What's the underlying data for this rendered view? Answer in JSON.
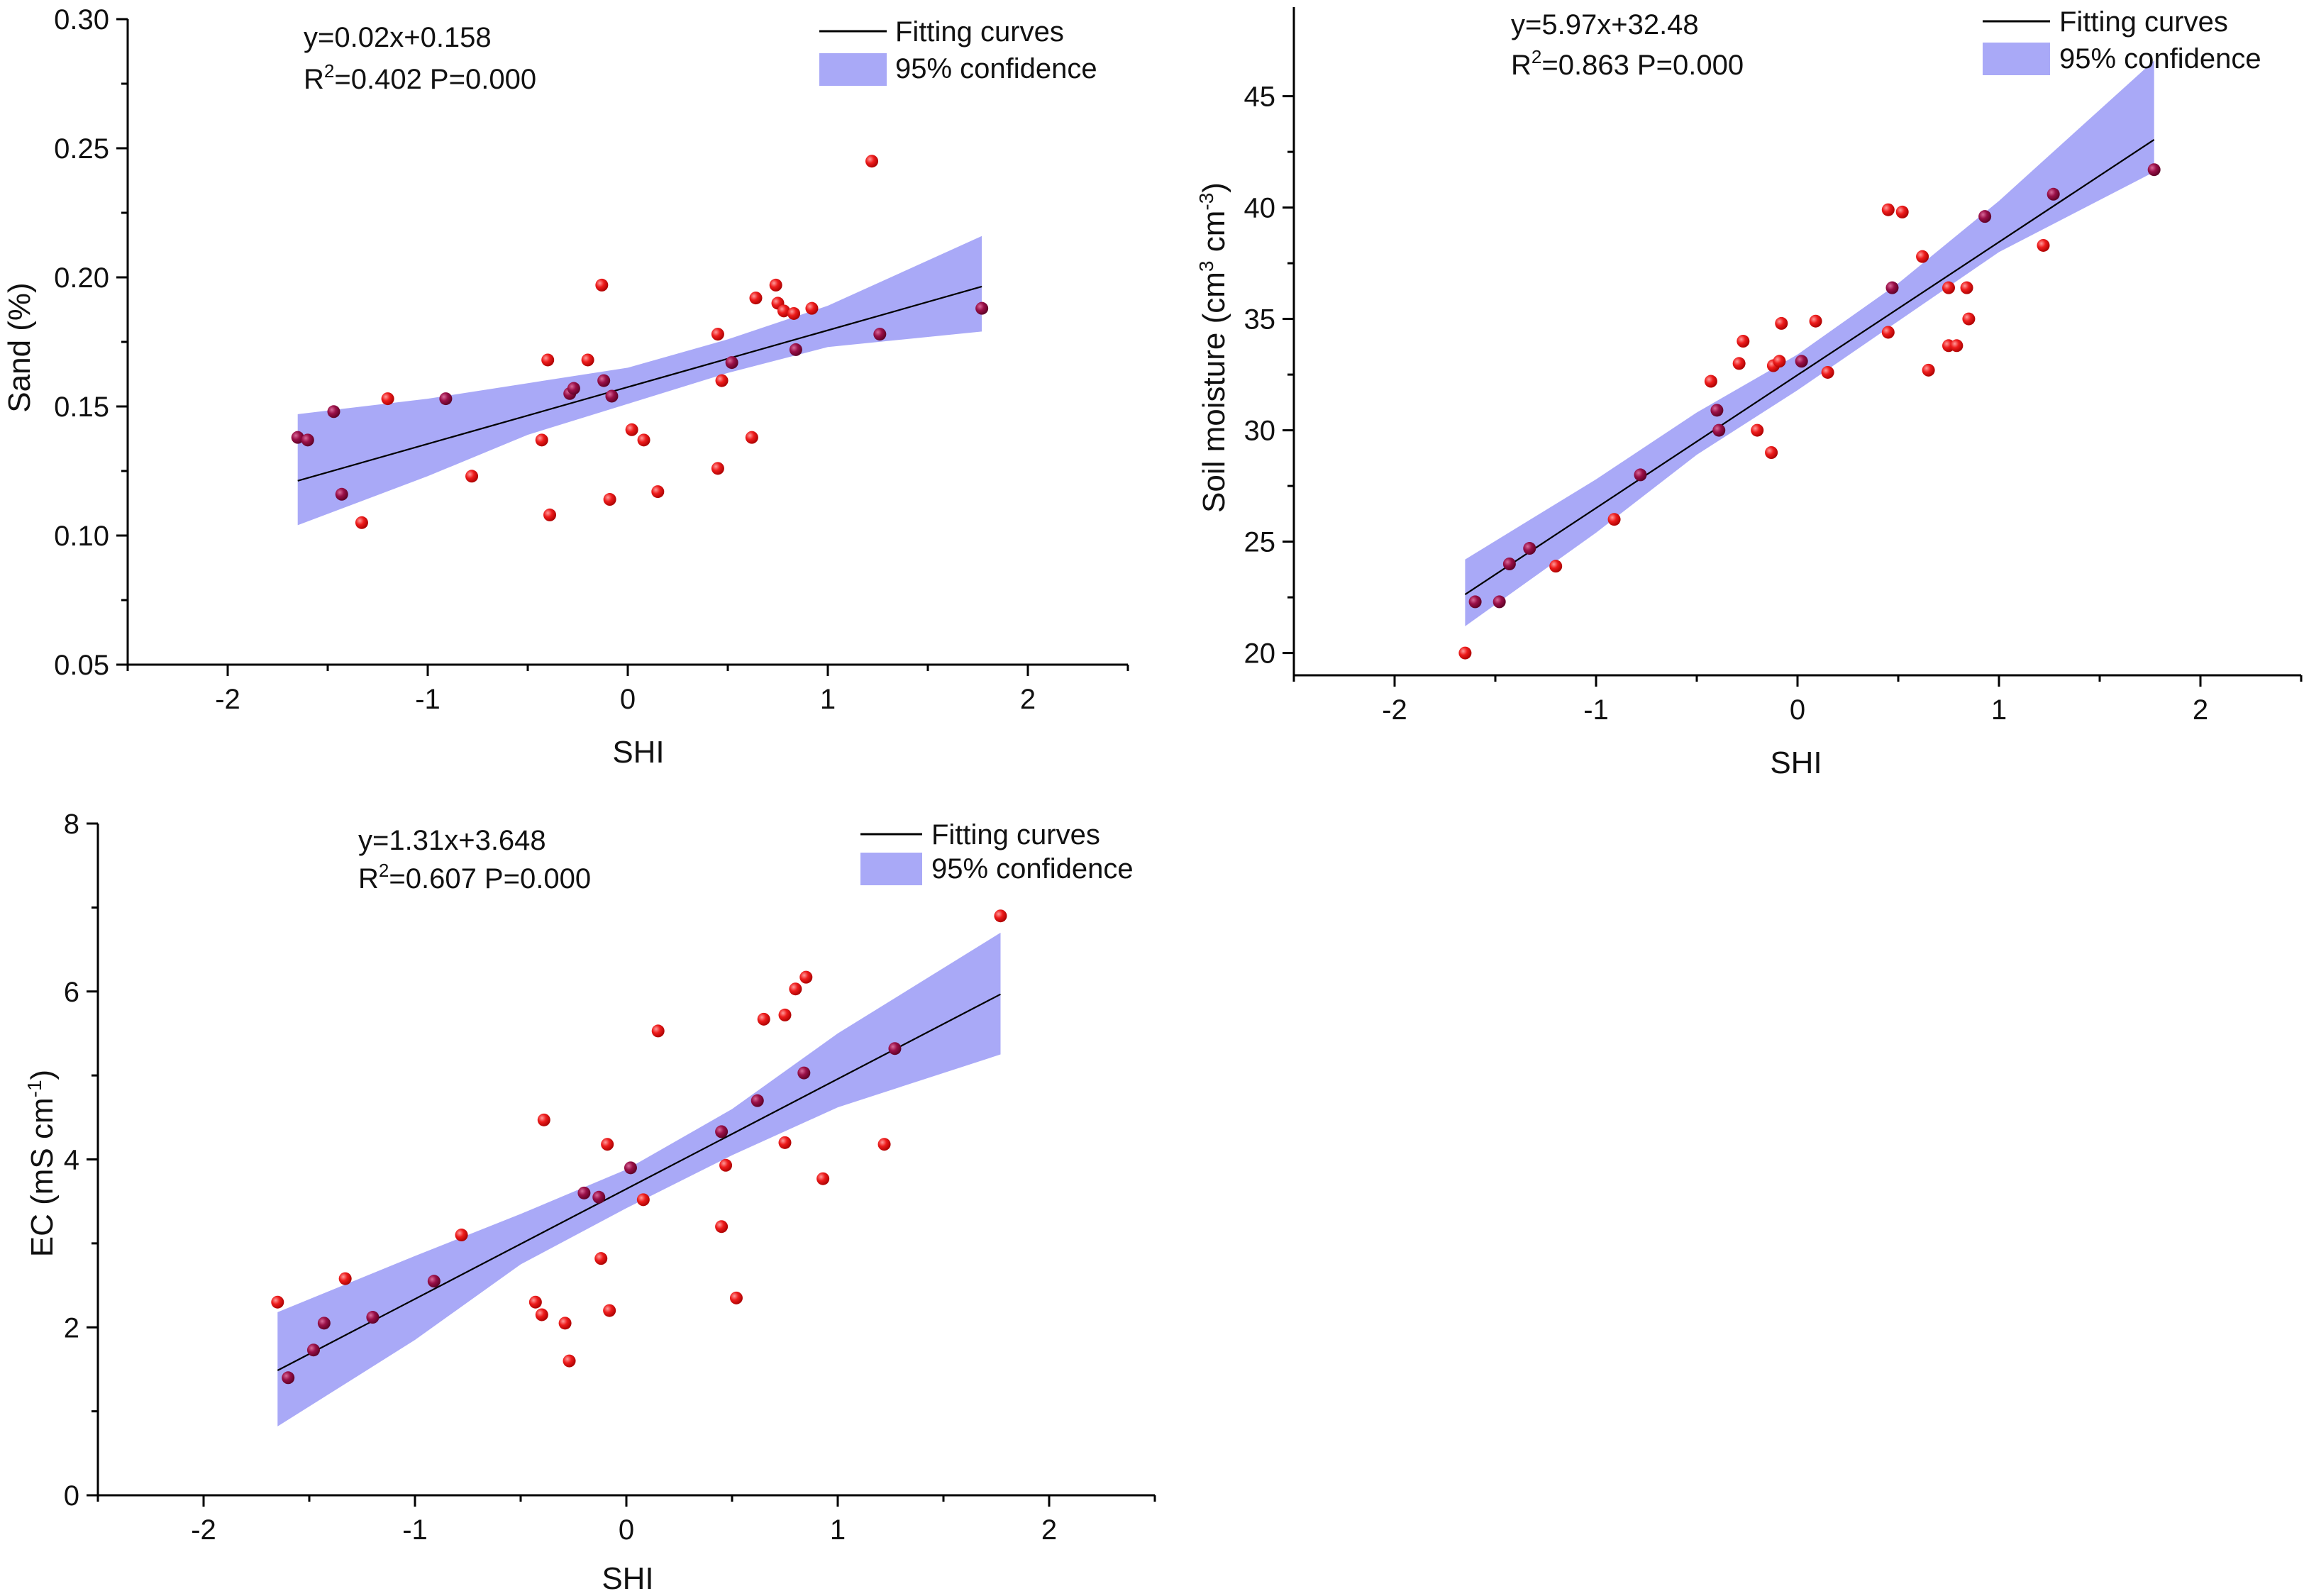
{
  "chart_data": [
    {
      "type": "scatter",
      "id": "sand",
      "xlabel": "SHI",
      "ylabel": "Sand (%)",
      "xlim": [
        -2.5,
        2.5
      ],
      "ylim": [
        0.05,
        0.3
      ],
      "xticks": [
        -2,
        -1,
        0,
        1,
        2
      ],
      "yticks": [
        0.05,
        0.1,
        0.15,
        0.2,
        0.25,
        0.3
      ],
      "xtick_labels": [
        "-2",
        "-1",
        "0",
        "1",
        "2"
      ],
      "ytick_labels": [
        "0.05",
        "0.10",
        "0.15",
        "0.20",
        "0.25",
        "0.30"
      ],
      "equation": "y=0.02x+0.158",
      "r2_label": "R",
      "r2_sup": "2",
      "r2_value": "=0.402 P=0.000",
      "legend": {
        "line": "Fitting curves",
        "band": "95% confidence"
      },
      "fit": {
        "slope": 0.022,
        "intercept": 0.1575,
        "x_range": [
          -1.65,
          1.77
        ]
      },
      "band_lower": [
        [
          -1.65,
          0.104
        ],
        [
          -1.0,
          0.123
        ],
        [
          -0.5,
          0.139
        ],
        [
          0.0,
          0.151
        ],
        [
          0.5,
          0.163
        ],
        [
          1.0,
          0.173
        ],
        [
          1.77,
          0.179
        ]
      ],
      "band_upper": [
        [
          -1.65,
          0.147
        ],
        [
          -1.0,
          0.153
        ],
        [
          -0.5,
          0.159
        ],
        [
          0.0,
          0.165
        ],
        [
          0.5,
          0.176
        ],
        [
          1.0,
          0.189
        ],
        [
          1.77,
          0.216
        ]
      ],
      "points": [
        [
          -1.65,
          0.138
        ],
        [
          -1.6,
          0.137
        ],
        [
          -1.47,
          0.148
        ],
        [
          -1.43,
          0.116
        ],
        [
          -1.33,
          0.105
        ],
        [
          -1.2,
          0.153
        ],
        [
          -0.91,
          0.153
        ],
        [
          -0.78,
          0.123
        ],
        [
          -0.43,
          0.137
        ],
        [
          -0.4,
          0.168
        ],
        [
          -0.39,
          0.108
        ],
        [
          -0.29,
          0.155
        ],
        [
          -0.27,
          0.157
        ],
        [
          -0.2,
          0.168
        ],
        [
          -0.13,
          0.197
        ],
        [
          -0.12,
          0.16
        ],
        [
          -0.09,
          0.114
        ],
        [
          -0.08,
          0.154
        ],
        [
          0.02,
          0.141
        ],
        [
          0.08,
          0.137
        ],
        [
          0.15,
          0.117
        ],
        [
          0.45,
          0.126
        ],
        [
          0.45,
          0.178
        ],
        [
          0.47,
          0.16
        ],
        [
          0.52,
          0.167
        ],
        [
          0.62,
          0.138
        ],
        [
          0.64,
          0.192
        ],
        [
          0.74,
          0.197
        ],
        [
          0.75,
          0.19
        ],
        [
          0.78,
          0.187
        ],
        [
          0.83,
          0.186
        ],
        [
          0.84,
          0.172
        ],
        [
          0.92,
          0.188
        ],
        [
          1.22,
          0.245
        ],
        [
          1.26,
          0.178
        ],
        [
          1.77,
          0.188
        ]
      ]
    },
    {
      "type": "scatter",
      "id": "soil-moisture",
      "xlabel": "SHI",
      "ylabel_main": "Soil moisture (cm",
      "ylabel_sup1": "3",
      "ylabel_mid": " cm",
      "ylabel_sup2": "-3",
      "ylabel_end": ")",
      "xlim": [
        -2.5,
        2.5
      ],
      "ylim": [
        19,
        49
      ],
      "xticks": [
        -2,
        -1,
        0,
        1,
        2
      ],
      "yticks": [
        20,
        25,
        30,
        35,
        40,
        45
      ],
      "xtick_labels": [
        "-2",
        "-1",
        "0",
        "1",
        "2"
      ],
      "ytick_labels": [
        "20",
        "25",
        "30",
        "35",
        "40",
        "45"
      ],
      "equation": "y=5.97x+32.48",
      "r2_label": "R",
      "r2_sup": "2",
      "r2_value": "=0.863 P=0.000",
      "legend": {
        "line": "Fitting curves",
        "band": "95% confidence"
      },
      "fit": {
        "slope": 5.97,
        "intercept": 32.48,
        "x_range": [
          -1.65,
          1.77
        ]
      },
      "band_lower": [
        [
          -1.65,
          21.2
        ],
        [
          -1.0,
          25.4
        ],
        [
          -0.5,
          28.9
        ],
        [
          0.0,
          31.8
        ],
        [
          0.5,
          34.9
        ],
        [
          1.0,
          38.0
        ],
        [
          1.77,
          41.6
        ]
      ],
      "band_upper": [
        [
          -1.65,
          24.2
        ],
        [
          -1.0,
          27.8
        ],
        [
          -0.5,
          30.8
        ],
        [
          0.0,
          33.4
        ],
        [
          0.5,
          36.6
        ],
        [
          1.0,
          40.3
        ],
        [
          1.77,
          46.6
        ]
      ],
      "points": [
        [
          -1.65,
          20.0
        ],
        [
          -1.6,
          22.3
        ],
        [
          -1.48,
          22.3
        ],
        [
          -1.43,
          24.0
        ],
        [
          -1.33,
          24.7
        ],
        [
          -1.2,
          23.9
        ],
        [
          -0.91,
          26.0
        ],
        [
          -0.78,
          28.0
        ],
        [
          -0.43,
          32.2
        ],
        [
          -0.4,
          30.9
        ],
        [
          -0.39,
          30.0
        ],
        [
          -0.29,
          33.0
        ],
        [
          -0.27,
          34.0
        ],
        [
          -0.2,
          30.0
        ],
        [
          -0.13,
          29.0
        ],
        [
          -0.12,
          32.9
        ],
        [
          -0.09,
          33.1
        ],
        [
          -0.08,
          34.8
        ],
        [
          0.02,
          33.1
        ],
        [
          0.09,
          34.9
        ],
        [
          0.15,
          32.6
        ],
        [
          0.45,
          34.4
        ],
        [
          0.45,
          39.9
        ],
        [
          0.47,
          36.4
        ],
        [
          0.52,
          39.8
        ],
        [
          0.62,
          37.8
        ],
        [
          0.65,
          32.7
        ],
        [
          0.75,
          33.8
        ],
        [
          0.75,
          36.4
        ],
        [
          0.79,
          33.8
        ],
        [
          0.84,
          36.4
        ],
        [
          0.85,
          35.0
        ],
        [
          0.93,
          39.6
        ],
        [
          1.22,
          38.3
        ],
        [
          1.27,
          40.6
        ],
        [
          1.77,
          41.7
        ]
      ]
    },
    {
      "type": "scatter",
      "id": "ec",
      "xlabel": "SHI",
      "ylabel_main": "EC (mS cm",
      "ylabel_sup1": "-1",
      "ylabel_end": ")",
      "xlim": [
        -2.5,
        2.5
      ],
      "ylim": [
        0,
        8
      ],
      "xticks": [
        -2,
        -1,
        0,
        1,
        2
      ],
      "yticks": [
        0,
        2,
        4,
        6,
        8
      ],
      "xtick_labels": [
        "-2",
        "-1",
        "0",
        "1",
        "2"
      ],
      "ytick_labels": [
        "0",
        "2",
        "4",
        "6",
        "8"
      ],
      "equation": "y=1.31x+3.648",
      "r2_label": "R",
      "r2_sup": "2",
      "r2_value": "=0.607 P=0.000",
      "legend": {
        "line": "Fitting curves",
        "band": "95% confidence"
      },
      "fit": {
        "slope": 1.31,
        "intercept": 3.648,
        "x_range": [
          -1.65,
          1.77
        ]
      },
      "band_lower": [
        [
          -1.65,
          0.82
        ],
        [
          -1.0,
          1.85
        ],
        [
          -0.5,
          2.75
        ],
        [
          0.0,
          3.42
        ],
        [
          0.5,
          4.05
        ],
        [
          1.0,
          4.62
        ],
        [
          1.77,
          5.25
        ]
      ],
      "band_upper": [
        [
          -1.65,
          2.18
        ],
        [
          -1.0,
          2.85
        ],
        [
          -0.5,
          3.35
        ],
        [
          0.0,
          3.88
        ],
        [
          0.5,
          4.6
        ],
        [
          1.0,
          5.5
        ],
        [
          1.77,
          6.7
        ]
      ],
      "points": [
        [
          -1.65,
          2.3
        ],
        [
          -1.6,
          1.4
        ],
        [
          -1.48,
          1.73
        ],
        [
          -1.43,
          2.05
        ],
        [
          -1.33,
          2.58
        ],
        [
          -1.2,
          2.12
        ],
        [
          -0.91,
          2.55
        ],
        [
          -0.78,
          3.1
        ],
        [
          -0.43,
          2.3
        ],
        [
          -0.4,
          2.15
        ],
        [
          -0.39,
          4.47
        ],
        [
          -0.29,
          2.05
        ],
        [
          -0.27,
          1.6
        ],
        [
          -0.2,
          3.6
        ],
        [
          -0.13,
          3.55
        ],
        [
          -0.12,
          2.82
        ],
        [
          -0.09,
          4.18
        ],
        [
          -0.08,
          2.2
        ],
        [
          0.02,
          3.9
        ],
        [
          0.08,
          3.52
        ],
        [
          0.15,
          5.53
        ],
        [
          0.45,
          3.2
        ],
        [
          0.45,
          4.33
        ],
        [
          0.47,
          3.93
        ],
        [
          0.52,
          2.35
        ],
        [
          0.62,
          4.7
        ],
        [
          0.65,
          5.67
        ],
        [
          0.75,
          5.72
        ],
        [
          0.75,
          4.2
        ],
        [
          0.8,
          6.03
        ],
        [
          0.84,
          5.03
        ],
        [
          0.85,
          6.17
        ],
        [
          0.93,
          3.77
        ],
        [
          1.22,
          4.18
        ],
        [
          1.27,
          5.32
        ],
        [
          1.77,
          6.9
        ]
      ]
    }
  ],
  "colors": {
    "band": "#a9a9f7",
    "point_fill": "#e3101b",
    "point_highlight": "#ff8c8c",
    "point_on_band": "#8e0f45",
    "axis": "#000000"
  }
}
